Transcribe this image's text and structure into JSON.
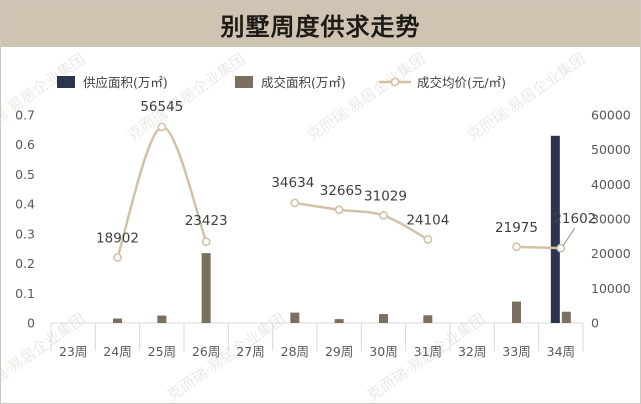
{
  "title": "别墅周度供求走势",
  "watermark": "克而瑞·易居企业集团",
  "colors": {
    "supply": "#2c3550",
    "deal": "#7b705f",
    "price": "#d3c1a6",
    "title_bg": "#cfc4b2",
    "grid": "#e6e6e6"
  },
  "chart_data": {
    "type": "bar",
    "categories": [
      "23周",
      "24周",
      "25周",
      "26周",
      "27周",
      "28周",
      "29周",
      "30周",
      "31周",
      "32周",
      "33周",
      "34周"
    ],
    "series": [
      {
        "name": "供应面积(万㎡)",
        "type": "bar",
        "axis": "left",
        "values": [
          0,
          0,
          0,
          0,
          0,
          0,
          0,
          0,
          0,
          0,
          0,
          0.63
        ]
      },
      {
        "name": "成交面积(万㎡)",
        "type": "bar",
        "axis": "left",
        "values": [
          0,
          0.015,
          0.025,
          0.235,
          0,
          0.035,
          0.013,
          0.03,
          0.026,
          0,
          0.072,
          0.038
        ]
      },
      {
        "name": "成交均价(元/㎡)",
        "type": "line",
        "axis": "right",
        "values": [
          null,
          18902,
          56545,
          23423,
          null,
          34634,
          32665,
          31029,
          24104,
          null,
          21975,
          21602
        ]
      }
    ],
    "left_axis": {
      "min": 0,
      "max": 0.7,
      "ticks": [
        "0",
        "0.1",
        "0.2",
        "0.3",
        "0.4",
        "0.5",
        "0.6",
        "0.7"
      ]
    },
    "right_axis": {
      "min": 0,
      "max": 60000,
      "ticks": [
        "0",
        "10000",
        "20000",
        "30000",
        "40000",
        "50000",
        "60000"
      ]
    },
    "data_labels": [
      "",
      "18902",
      "56545",
      "23423",
      "",
      "34634",
      "32665",
      "31029",
      "24104",
      "",
      "21975",
      "21602"
    ],
    "legend_position": "top",
    "grid": false
  }
}
